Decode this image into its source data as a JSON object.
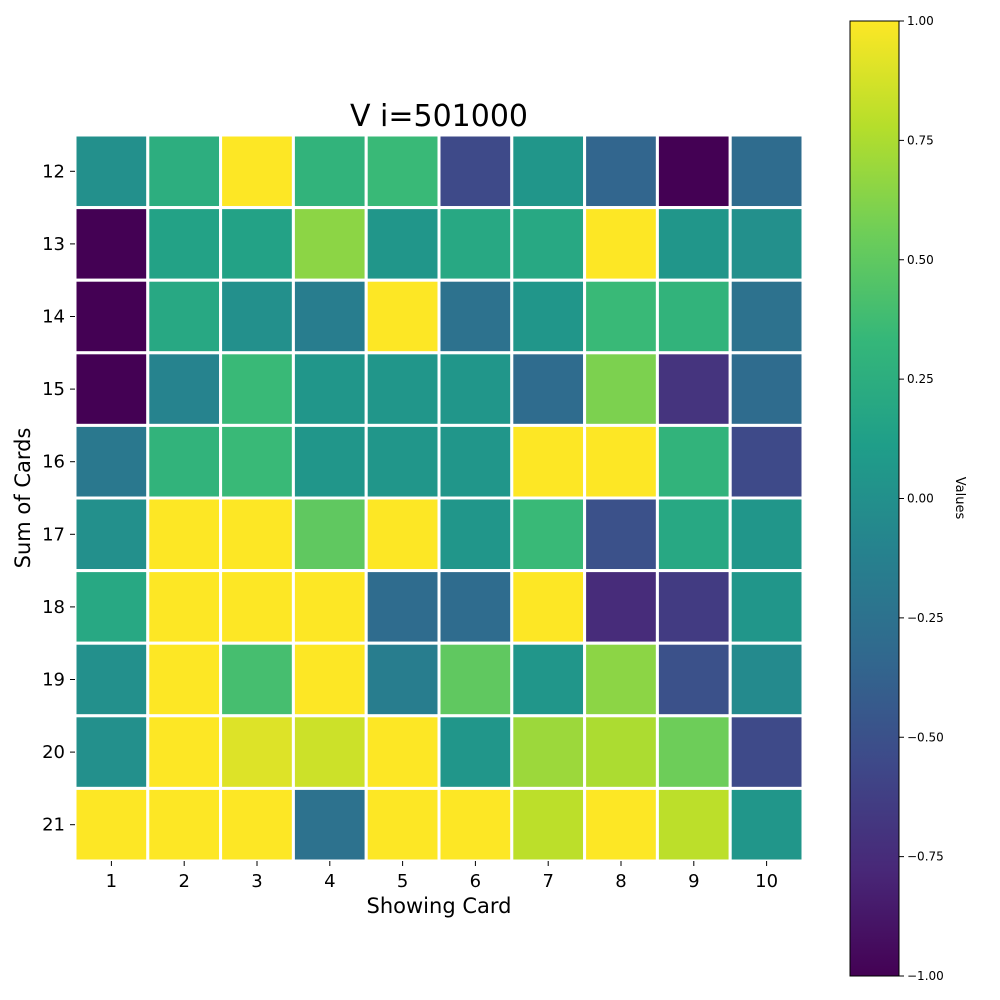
{
  "chart_data": {
    "type": "heatmap",
    "title": "V i=501000",
    "xlabel": "Showing Card",
    "ylabel": "Sum of Cards",
    "x_categories": [
      "1",
      "2",
      "3",
      "4",
      "5",
      "6",
      "7",
      "8",
      "9",
      "10"
    ],
    "y_categories": [
      "12",
      "13",
      "14",
      "15",
      "16",
      "17",
      "18",
      "19",
      "20",
      "21"
    ],
    "values": [
      [
        0.0,
        0.25,
        1.0,
        0.3,
        0.35,
        -0.55,
        0.05,
        -0.35,
        -1.0,
        -0.3
      ],
      [
        -1.0,
        0.15,
        0.15,
        0.65,
        0.05,
        0.2,
        0.2,
        1.0,
        0.05,
        0.0
      ],
      [
        -1.0,
        0.2,
        0.0,
        -0.15,
        1.0,
        -0.25,
        0.05,
        0.35,
        0.3,
        -0.25
      ],
      [
        -1.0,
        -0.1,
        0.35,
        0.05,
        0.05,
        0.05,
        -0.3,
        0.6,
        -0.7,
        -0.3
      ],
      [
        -0.2,
        0.3,
        0.35,
        0.05,
        0.05,
        0.05,
        1.0,
        1.0,
        0.3,
        -0.55
      ],
      [
        0.0,
        1.0,
        1.0,
        0.5,
        1.0,
        0.05,
        0.35,
        -0.5,
        0.2,
        0.05
      ],
      [
        0.2,
        1.0,
        1.0,
        1.0,
        -0.3,
        -0.3,
        1.0,
        -0.75,
        -0.65,
        0.05
      ],
      [
        0.0,
        1.0,
        0.4,
        1.0,
        -0.15,
        0.5,
        0.05,
        0.65,
        -0.5,
        -0.05
      ],
      [
        0.0,
        1.0,
        0.9,
        0.85,
        1.0,
        0.05,
        0.7,
        0.75,
        0.55,
        -0.55
      ],
      [
        1.0,
        1.0,
        1.0,
        -0.25,
        1.0,
        1.0,
        0.8,
        1.0,
        0.8,
        0.05
      ]
    ],
    "colorbar": {
      "label": "Values",
      "min": -1.0,
      "max": 1.0,
      "ticks": [
        1.0,
        0.75,
        0.5,
        0.25,
        0.0,
        -0.25,
        -0.5,
        -0.75,
        -1.0
      ],
      "tick_labels": [
        "1.00",
        "0.75",
        "0.50",
        "0.25",
        "0.00",
        "−0.25",
        "−0.50",
        "−0.75",
        "−1.00"
      ]
    },
    "colormap": "viridis",
    "colormap_stops": [
      "#440154",
      "#482878",
      "#3e4989",
      "#31688e",
      "#26828e",
      "#1f9e89",
      "#35b779",
      "#6ece58",
      "#b5de2b",
      "#fde725"
    ],
    "cell_separator_color": "#ffffff",
    "grid": false,
    "legend": "colorbar-right"
  }
}
